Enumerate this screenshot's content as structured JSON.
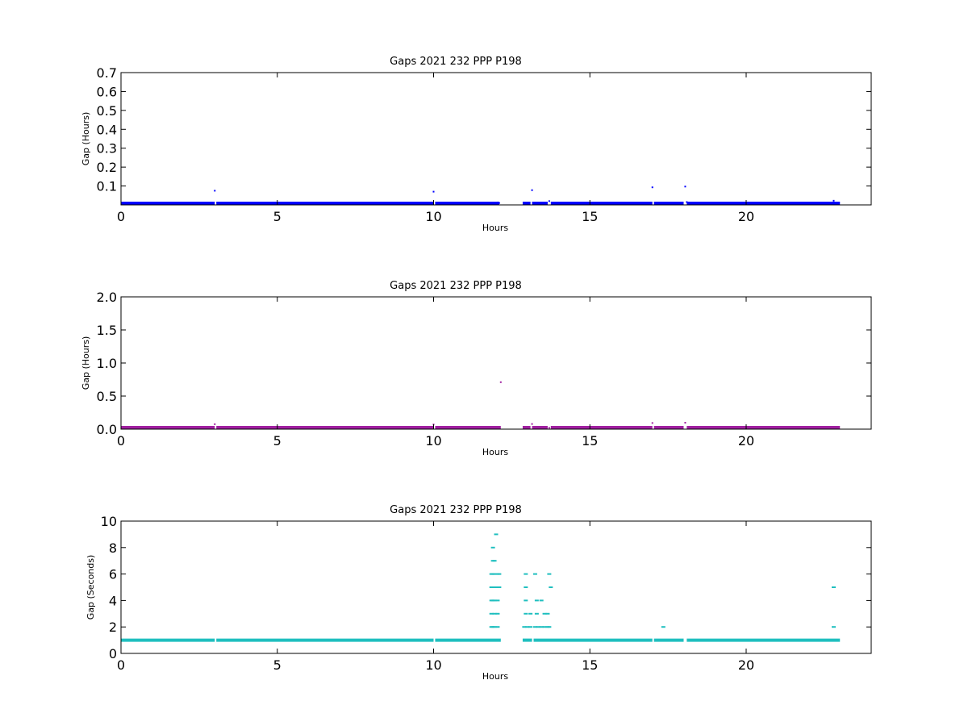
{
  "chart_data": [
    {
      "type": "scatter",
      "title": "Gaps 2021 232 PPP  P198",
      "xlabel": "Hours",
      "ylabel": "Gap (Hours)",
      "xlim": [
        0,
        24
      ],
      "ylim": [
        0,
        0.7
      ],
      "xticks": [
        0,
        5,
        10,
        15,
        20
      ],
      "xtick_labels": [
        "0",
        "5",
        "10",
        "15",
        "20"
      ],
      "yticks": [
        0.1,
        0.2,
        0.3,
        0.4,
        0.5,
        0.6,
        0.7
      ],
      "ytick_labels": [
        "0.1",
        "0.2",
        "0.3",
        "0.4",
        "0.5",
        "0.6",
        "0.7"
      ],
      "grid": false,
      "color": "#0000ff",
      "series": [
        {
          "baseline_value": 0.0003,
          "baseline_ranges": [
            [
              0,
              3.0
            ],
            [
              3.05,
              10.0
            ],
            [
              10.05,
              12.1
            ],
            [
              12.85,
              13.1
            ],
            [
              13.15,
              13.65
            ],
            [
              13.75,
              17.0
            ],
            [
              17.05,
              18.0
            ],
            [
              18.1,
              23.0
            ]
          ],
          "points": [
            {
              "x": 3.0,
              "y": 0.075
            },
            {
              "x": 10.0,
              "y": 0.07
            },
            {
              "x": 11.95,
              "y": 0.01
            },
            {
              "x": 12.05,
              "y": 0.013
            },
            {
              "x": 12.1,
              "y": 0.01
            },
            {
              "x": 13.15,
              "y": 0.078
            },
            {
              "x": 13.7,
              "y": 0.02
            },
            {
              "x": 17.0,
              "y": 0.093
            },
            {
              "x": 18.05,
              "y": 0.097
            },
            {
              "x": 18.1,
              "y": 0.015
            },
            {
              "x": 22.8,
              "y": 0.022
            }
          ]
        }
      ]
    },
    {
      "type": "scatter",
      "title": "Gaps 2021 232 PPP  P198",
      "xlabel": "Hours",
      "ylabel": "Gap (Hours)",
      "xlim": [
        0,
        24
      ],
      "ylim": [
        0,
        2.0
      ],
      "xticks": [
        0,
        5,
        10,
        15,
        20
      ],
      "xtick_labels": [
        "0",
        "5",
        "10",
        "15",
        "20"
      ],
      "yticks": [
        0.0,
        0.5,
        1.0,
        1.5,
        2.0
      ],
      "ytick_labels": [
        "0.0",
        "0.5",
        "1.0",
        "1.5",
        "2.0"
      ],
      "grid": false,
      "color": "#a020a0",
      "series": [
        {
          "baseline_value": 0.0003,
          "baseline_ranges": [
            [
              0,
              3.0
            ],
            [
              3.05,
              10.0
            ],
            [
              10.05,
              12.15
            ],
            [
              12.85,
              13.1
            ],
            [
              13.15,
              13.65
            ],
            [
              13.75,
              17.0
            ],
            [
              17.05,
              18.0
            ],
            [
              18.1,
              23.0
            ]
          ],
          "points": [
            {
              "x": 3.0,
              "y": 0.075
            },
            {
              "x": 10.0,
              "y": 0.07
            },
            {
              "x": 12.15,
              "y": 0.71
            },
            {
              "x": 13.15,
              "y": 0.078
            },
            {
              "x": 13.7,
              "y": 0.02
            },
            {
              "x": 17.0,
              "y": 0.093
            },
            {
              "x": 18.05,
              "y": 0.097
            }
          ]
        }
      ]
    },
    {
      "type": "scatter",
      "title": "Gaps 2021 232 PPP  P198",
      "xlabel": "Hours",
      "ylabel": "Gap (Seconds)",
      "xlim": [
        0,
        24
      ],
      "ylim": [
        0,
        10
      ],
      "xticks": [
        0,
        5,
        10,
        15,
        20
      ],
      "xtick_labels": [
        "0",
        "5",
        "10",
        "15",
        "20"
      ],
      "yticks": [
        0,
        2,
        4,
        6,
        8,
        10
      ],
      "ytick_labels": [
        "0",
        "2",
        "4",
        "6",
        "8",
        "10"
      ],
      "grid": false,
      "color": "#1fbfbf",
      "series": [
        {
          "baseline_value": 1,
          "baseline_ranges": [
            [
              0,
              3.0
            ],
            [
              3.05,
              10.0
            ],
            [
              10.05,
              12.15
            ],
            [
              12.85,
              13.15
            ],
            [
              13.2,
              17.0
            ],
            [
              17.05,
              18.0
            ],
            [
              18.1,
              23.0
            ]
          ],
          "points": [
            {
              "x": 11.85,
              "y": 2
            },
            {
              "x": 11.9,
              "y": 2
            },
            {
              "x": 11.95,
              "y": 2
            },
            {
              "x": 12.05,
              "y": 2
            },
            {
              "x": 11.85,
              "y": 3
            },
            {
              "x": 11.95,
              "y": 3
            },
            {
              "x": 12.05,
              "y": 3
            },
            {
              "x": 11.85,
              "y": 4
            },
            {
              "x": 11.9,
              "y": 4
            },
            {
              "x": 11.95,
              "y": 4
            },
            {
              "x": 12.05,
              "y": 4
            },
            {
              "x": 11.85,
              "y": 5
            },
            {
              "x": 11.95,
              "y": 5
            },
            {
              "x": 12.05,
              "y": 5
            },
            {
              "x": 12.1,
              "y": 5
            },
            {
              "x": 11.85,
              "y": 6
            },
            {
              "x": 11.9,
              "y": 6
            },
            {
              "x": 11.95,
              "y": 6
            },
            {
              "x": 12.05,
              "y": 6
            },
            {
              "x": 12.1,
              "y": 6
            },
            {
              "x": 11.9,
              "y": 7
            },
            {
              "x": 11.95,
              "y": 7
            },
            {
              "x": 11.9,
              "y": 8
            },
            {
              "x": 12.0,
              "y": 9
            },
            {
              "x": 12.9,
              "y": 2
            },
            {
              "x": 13.0,
              "y": 2
            },
            {
              "x": 13.1,
              "y": 2
            },
            {
              "x": 13.25,
              "y": 2
            },
            {
              "x": 13.35,
              "y": 2
            },
            {
              "x": 13.45,
              "y": 2
            },
            {
              "x": 13.55,
              "y": 2
            },
            {
              "x": 13.65,
              "y": 2
            },
            {
              "x": 13.7,
              "y": 2
            },
            {
              "x": 12.95,
              "y": 3
            },
            {
              "x": 13.1,
              "y": 3
            },
            {
              "x": 13.3,
              "y": 3
            },
            {
              "x": 13.55,
              "y": 3
            },
            {
              "x": 13.65,
              "y": 3
            },
            {
              "x": 12.95,
              "y": 4
            },
            {
              "x": 13.3,
              "y": 4
            },
            {
              "x": 13.45,
              "y": 4
            },
            {
              "x": 12.95,
              "y": 5
            },
            {
              "x": 13.75,
              "y": 5
            },
            {
              "x": 12.95,
              "y": 6
            },
            {
              "x": 13.25,
              "y": 6
            },
            {
              "x": 13.7,
              "y": 6
            },
            {
              "x": 17.35,
              "y": 2
            },
            {
              "x": 22.8,
              "y": 2
            },
            {
              "x": 22.8,
              "y": 5
            }
          ]
        }
      ]
    }
  ]
}
